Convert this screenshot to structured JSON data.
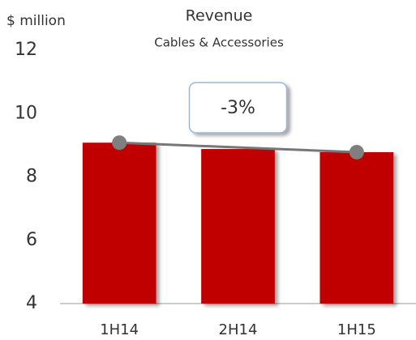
{
  "chart_data": {
    "type": "bar",
    "title": "Revenue",
    "subtitle": "Cables & Accessories",
    "ylabel": "$ million",
    "categories": [
      "1H14",
      "2H14",
      "1H15"
    ],
    "values": [
      9.08,
      8.88,
      8.78
    ],
    "color": "#c00000",
    "ylim": [
      4,
      12
    ],
    "yticks": [
      4,
      6,
      8,
      10,
      12
    ],
    "grid": false,
    "annotation": "-3%"
  }
}
